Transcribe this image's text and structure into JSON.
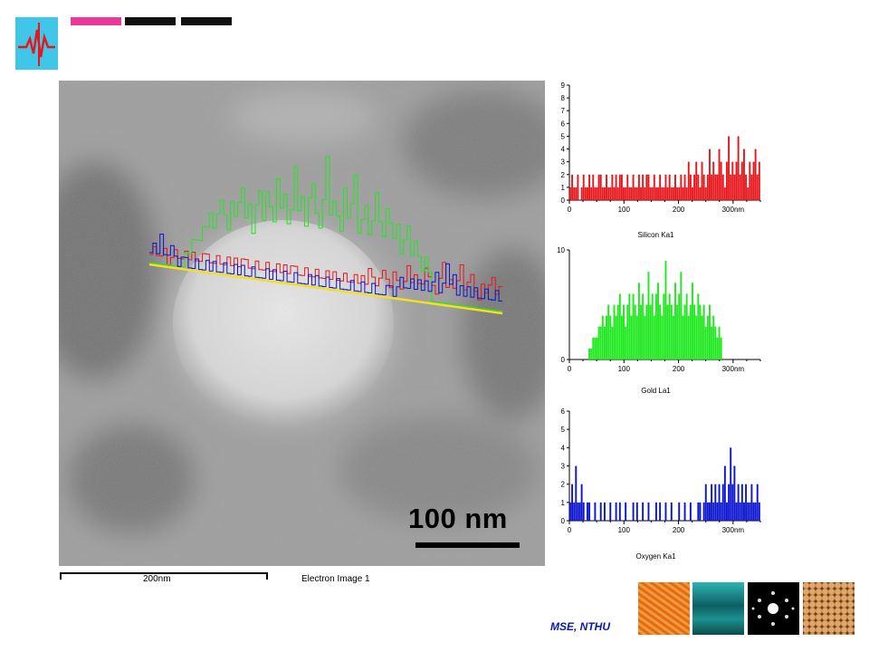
{
  "slide": {
    "affiliation": "MSE, NTHU"
  },
  "sem_image": {
    "scale_label": "100 nm",
    "footer_scale_label": "200nm",
    "footer_image_label": "Electron Image 1"
  },
  "colors": {
    "silicon": "#e8161b",
    "gold": "#1ee81e",
    "oxygen": "#0b14d0",
    "logo": "#3fc6e8",
    "affiliation": "#0a1aa8"
  },
  "icons": [
    "waveform-logo-icon"
  ],
  "chart_data": [
    {
      "type": "bar",
      "title": "Silicon Ka1",
      "xlabel": "",
      "ylabel": "",
      "x_ticks": [
        "0",
        "100",
        "200",
        "300nm"
      ],
      "y_ticks": [
        "0",
        "1",
        "2",
        "3",
        "4",
        "5",
        "6",
        "7",
        "8",
        "9"
      ],
      "xlim": [
        0,
        350
      ],
      "ylim": [
        0,
        9
      ],
      "series": [
        {
          "color": "#e8161b",
          "values": [
            1,
            2,
            1,
            1,
            2,
            0,
            1,
            2,
            1,
            1,
            2,
            1,
            2,
            1,
            1,
            2,
            2,
            1,
            1,
            2,
            1,
            1,
            2,
            1,
            2,
            1,
            2,
            2,
            1,
            1,
            2,
            1,
            1,
            2,
            1,
            1,
            2,
            1,
            2,
            1,
            2,
            2,
            1,
            1,
            2,
            1,
            1,
            2,
            1,
            1,
            2,
            1,
            2,
            1,
            1,
            2,
            1,
            1,
            2,
            1,
            2,
            1,
            3,
            2,
            1,
            2,
            3,
            2,
            1,
            3,
            2,
            1,
            2,
            4,
            2,
            3,
            2,
            2,
            4,
            3,
            2,
            1,
            3,
            5,
            2,
            3,
            2,
            3,
            5,
            2,
            3,
            4,
            2,
            1,
            3,
            2,
            3,
            4,
            2,
            3
          ]
        }
      ]
    },
    {
      "type": "bar",
      "title": "Gold La1",
      "xlabel": "",
      "ylabel": "",
      "x_ticks": [
        "0",
        "100",
        "200",
        "300nm"
      ],
      "y_ticks": [
        "0",
        "10"
      ],
      "xlim": [
        0,
        350
      ],
      "ylim": [
        0,
        10
      ],
      "series": [
        {
          "color": "#1ee81e",
          "values": [
            0,
            0,
            0,
            0,
            0,
            0,
            0,
            0,
            0,
            0,
            1,
            1,
            2,
            2,
            2,
            3,
            3,
            4,
            3,
            4,
            5,
            4,
            3,
            5,
            4,
            5,
            6,
            4,
            5,
            3,
            5,
            6,
            4,
            6,
            5,
            4,
            7,
            5,
            6,
            4,
            5,
            8,
            5,
            6,
            4,
            6,
            7,
            5,
            4,
            6,
            9,
            5,
            6,
            5,
            4,
            7,
            5,
            6,
            8,
            4,
            5,
            6,
            4,
            5,
            7,
            5,
            4,
            6,
            5,
            4,
            5,
            3,
            4,
            5,
            3,
            4,
            3,
            2,
            3,
            2,
            0,
            0,
            0,
            0,
            0,
            0,
            0,
            0,
            0,
            0,
            0,
            0,
            0,
            0,
            0,
            0,
            0,
            0,
            0,
            0
          ]
        }
      ]
    },
    {
      "type": "bar",
      "title": "Oxygen Ka1",
      "xlabel": "",
      "ylabel": "",
      "x_ticks": [
        "0",
        "100",
        "200",
        "300nm"
      ],
      "y_ticks": [
        "0",
        "1",
        "2",
        "3",
        "4",
        "5",
        "6"
      ],
      "xlim": [
        0,
        350
      ],
      "ylim": [
        0,
        6
      ],
      "series": [
        {
          "color": "#0b14d0",
          "values": [
            1,
            2,
            1,
            3,
            1,
            1,
            2,
            1,
            0,
            1,
            1,
            0,
            0,
            1,
            0,
            0,
            1,
            0,
            1,
            0,
            0,
            1,
            0,
            0,
            1,
            0,
            1,
            0,
            0,
            1,
            0,
            0,
            0,
            1,
            0,
            1,
            0,
            0,
            1,
            0,
            0,
            1,
            0,
            0,
            0,
            1,
            0,
            1,
            0,
            0,
            1,
            0,
            0,
            1,
            0,
            0,
            0,
            1,
            0,
            0,
            1,
            0,
            0,
            1,
            0,
            0,
            0,
            1,
            1,
            0,
            1,
            2,
            1,
            1,
            2,
            1,
            2,
            1,
            2,
            1,
            2,
            3,
            1,
            2,
            4,
            2,
            3,
            1,
            2,
            1,
            2,
            1,
            2,
            1,
            1,
            2,
            1,
            1,
            2,
            1
          ]
        }
      ]
    }
  ]
}
